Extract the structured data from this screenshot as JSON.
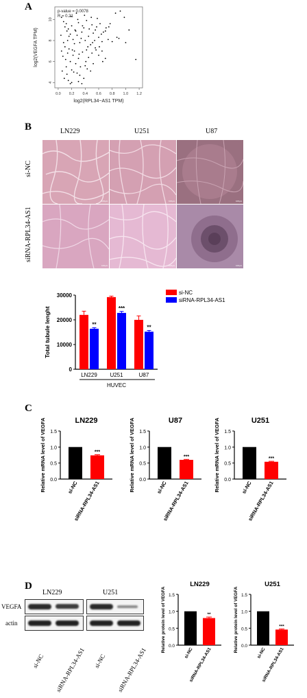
{
  "panels": {
    "a": "A",
    "b": "B",
    "c": "C",
    "d": "D"
  },
  "panel_a": {
    "stats_line1": "p-value = 0.0078",
    "stats_line2": "R = 0.21"
  },
  "panel_b": {
    "columns": [
      "LN229",
      "U251",
      "U87"
    ],
    "rows": [
      "si-NC",
      "siRNA-RPL34-AS1"
    ],
    "scale_label": "100μm"
  },
  "panel_d": {
    "blot_titles": [
      "LN229",
      "U251"
    ],
    "rows": [
      "VEGFA",
      "actin"
    ],
    "lane_labels": [
      "si-NC",
      "siRNA-RPL34-AS1"
    ]
  },
  "colors": {
    "red": "#ff0000",
    "blue": "#0000ff",
    "black": "#000000"
  },
  "chart_data": [
    {
      "type": "scatter",
      "xlabel": "log2(RPL34−AS1 TPM)",
      "ylabel": "log2(VEGFA TPM)",
      "xticks": [
        "0.0",
        "0.2",
        "0.4",
        "0.6",
        "0.8",
        "1.0",
        "1.2"
      ],
      "yticks": [
        "4",
        "6",
        "8",
        "10"
      ],
      "xlim": [
        -0.05,
        1.25
      ],
      "ylim": [
        3.5,
        11.2
      ],
      "points": [
        [
          0.05,
          10.2
        ],
        [
          0.08,
          9.8
        ],
        [
          0.1,
          9.3
        ],
        [
          0.12,
          9.6
        ],
        [
          0.13,
          8.9
        ],
        [
          0.15,
          9.1
        ],
        [
          0.18,
          8.6
        ],
        [
          0.2,
          9.4
        ],
        [
          0.22,
          8.1
        ],
        [
          0.25,
          9.0
        ],
        [
          0.28,
          8.5
        ],
        [
          0.3,
          9.7
        ],
        [
          0.32,
          7.8
        ],
        [
          0.35,
          8.8
        ],
        [
          0.38,
          9.2
        ],
        [
          0.4,
          8.0
        ],
        [
          0.42,
          9.9
        ],
        [
          0.45,
          8.4
        ],
        [
          0.48,
          7.6
        ],
        [
          0.5,
          9.5
        ],
        [
          0.52,
          8.7
        ],
        [
          0.55,
          9.0
        ],
        [
          0.58,
          10.1
        ],
        [
          0.6,
          8.3
        ],
        [
          0.62,
          9.6
        ],
        [
          0.65,
          7.9
        ],
        [
          0.7,
          8.9
        ],
        [
          0.75,
          9.3
        ],
        [
          0.85,
          10.6
        ],
        [
          0.92,
          10.8
        ],
        [
          0.98,
          10.2
        ],
        [
          1.05,
          9.0
        ],
        [
          1.15,
          6.2
        ],
        [
          0.05,
          7.0
        ],
        [
          0.07,
          6.5
        ],
        [
          0.1,
          7.4
        ],
        [
          0.12,
          5.5
        ],
        [
          0.14,
          6.8
        ],
        [
          0.16,
          7.2
        ],
        [
          0.18,
          6.0
        ],
        [
          0.2,
          5.2
        ],
        [
          0.22,
          6.6
        ],
        [
          0.24,
          7.0
        ],
        [
          0.26,
          5.8
        ],
        [
          0.28,
          4.9
        ],
        [
          0.3,
          6.3
        ],
        [
          0.33,
          5.5
        ],
        [
          0.36,
          6.9
        ],
        [
          0.38,
          4.4
        ],
        [
          0.4,
          5.6
        ],
        [
          0.42,
          7.1
        ],
        [
          0.45,
          6.4
        ],
        [
          0.48,
          5.1
        ],
        [
          0.5,
          6.8
        ],
        [
          0.55,
          7.3
        ],
        [
          0.6,
          6.6
        ],
        [
          0.65,
          7.0
        ],
        [
          0.7,
          6.3
        ],
        [
          0.8,
          7.9
        ],
        [
          0.9,
          8.2
        ],
        [
          1.0,
          7.8
        ],
        [
          0.09,
          4.4
        ],
        [
          0.2,
          4.0
        ],
        [
          0.3,
          4.1
        ],
        [
          0.18,
          3.9
        ],
        [
          0.06,
          5.1
        ],
        [
          0.13,
          4.8
        ],
        [
          0.24,
          7.7
        ],
        [
          0.34,
          8.2
        ],
        [
          0.44,
          7.4
        ],
        [
          0.54,
          8.0
        ],
        [
          0.64,
          8.6
        ],
        [
          0.74,
          8.1
        ],
        [
          0.16,
          8.4
        ],
        [
          0.26,
          8.9
        ],
        [
          0.36,
          9.4
        ],
        [
          0.46,
          9.1
        ],
        [
          0.56,
          7.1
        ],
        [
          0.66,
          6.0
        ],
        [
          0.11,
          6.2
        ],
        [
          0.21,
          7.1
        ],
        [
          0.31,
          6.7
        ],
        [
          0.41,
          6.0
        ],
        [
          0.51,
          7.8
        ],
        [
          0.61,
          7.4
        ],
        [
          0.71,
          9.2
        ],
        [
          0.08,
          7.8
        ],
        [
          0.14,
          8.0
        ],
        [
          0.29,
          10.0
        ],
        [
          0.39,
          10.4
        ],
        [
          0.49,
          10.2
        ],
        [
          0.19,
          10.3
        ],
        [
          0.27,
          10.6
        ],
        [
          0.57,
          9.3
        ],
        [
          0.67,
          8.8
        ],
        [
          0.77,
          9.6
        ],
        [
          0.87,
          8.3
        ],
        [
          0.04,
          8.5
        ],
        [
          0.32,
          4.7
        ],
        [
          0.43,
          5.3
        ],
        [
          0.52,
          5.8
        ],
        [
          0.23,
          5.0
        ],
        [
          0.15,
          4.2
        ],
        [
          0.35,
          3.9
        ]
      ]
    },
    {
      "type": "bar",
      "ylabel": "Total tubule lenght",
      "categories": [
        "LN229",
        "U251",
        "U87"
      ],
      "group_label": "HUVEC",
      "ylim": [
        0,
        30000
      ],
      "yticks": [
        "0",
        "10000",
        "20000",
        "30000"
      ],
      "legend": "top-right",
      "series": [
        {
          "name": "si-NC",
          "values": [
            22000,
            29200,
            20000
          ],
          "errors": [
            1500,
            400,
            1600
          ]
        },
        {
          "name": "siRNA-RPL34-AS1",
          "values": [
            16400,
            22800,
            15200
          ],
          "errors": [
            400,
            600,
            500
          ]
        }
      ],
      "significance": [
        "**",
        "***",
        "**"
      ]
    },
    {
      "type": "bar",
      "title": "LN229",
      "ylabel": "Relative mRNA level of VEGFA",
      "categories": [
        "si-NC",
        "siRNA-RPL34-AS1"
      ],
      "values": [
        1.0,
        0.74
      ],
      "errors": [
        0,
        0.02
      ],
      "ylim": [
        0,
        1.5
      ],
      "yticks": [
        "0.0",
        "0.5",
        "1.0",
        "1.5"
      ],
      "significance": "***"
    },
    {
      "type": "bar",
      "title": "U87",
      "ylabel": "Relative mRNA level of VEGFA",
      "categories": [
        "si-NC",
        "siRNA-RPL34-AS1"
      ],
      "values": [
        1.0,
        0.6
      ],
      "errors": [
        0,
        0.015
      ],
      "ylim": [
        0,
        1.5
      ],
      "yticks": [
        "0.0",
        "0.5",
        "1.0",
        "1.5"
      ],
      "significance": "***"
    },
    {
      "type": "bar",
      "title": "U251",
      "ylabel": "Relative mRNA level of VEGFA",
      "categories": [
        "si-NC",
        "siRNA-RPL34-AS1"
      ],
      "values": [
        1.0,
        0.54
      ],
      "errors": [
        0,
        0.015
      ],
      "ylim": [
        0,
        1.5
      ],
      "yticks": [
        "0.0",
        "0.5",
        "1.0",
        "1.5"
      ],
      "significance": "***"
    },
    {
      "type": "bar",
      "title": "LN229",
      "ylabel": "Relative protein level of VEGFA",
      "categories": [
        "si-NC",
        "siRNA-RPL34-AS1"
      ],
      "values": [
        1.0,
        0.8
      ],
      "errors": [
        0,
        0.03
      ],
      "ylim": [
        0,
        1.5
      ],
      "yticks": [
        "0.0",
        "0.5",
        "1.0",
        "1.5"
      ],
      "significance": "**"
    },
    {
      "type": "bar",
      "title": "U251",
      "ylabel": "Relative protein level of VEGFA",
      "categories": [
        "si-NC",
        "siRNA-RPL34-AS1"
      ],
      "values": [
        1.0,
        0.46
      ],
      "errors": [
        0,
        0.02
      ],
      "ylim": [
        0,
        1.5
      ],
      "yticks": [
        "0.0",
        "0.5",
        "1.0",
        "1.5"
      ],
      "significance": "***"
    }
  ]
}
